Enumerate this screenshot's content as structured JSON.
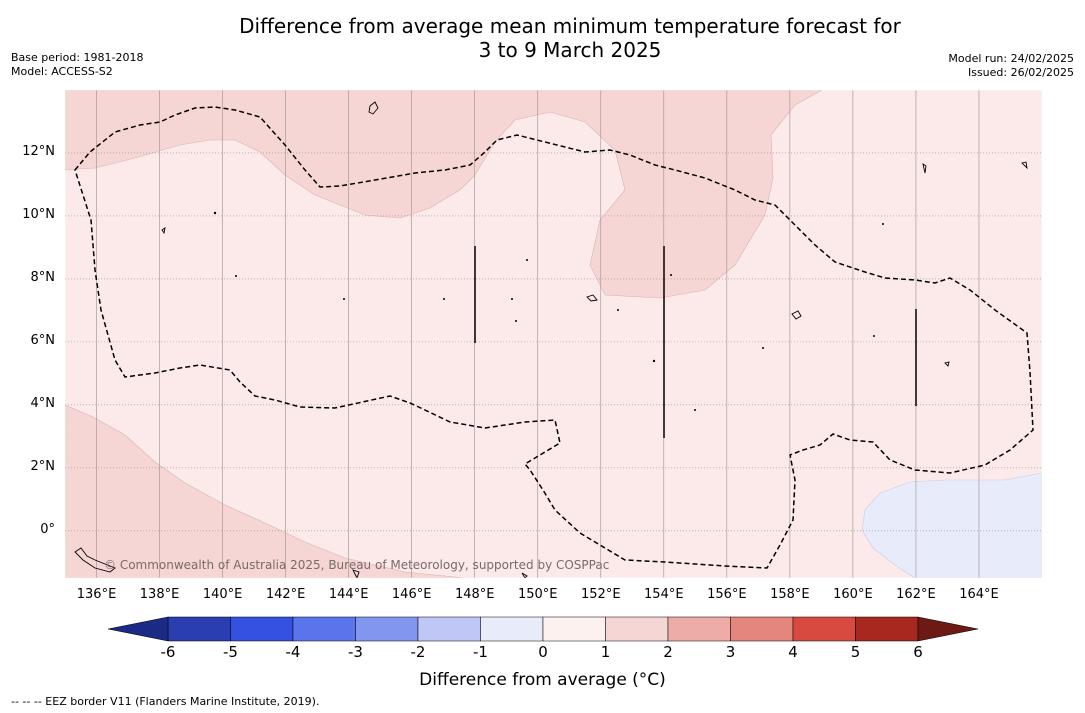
{
  "title": {
    "line1": "Difference from average mean minimum temperature forecast for",
    "line2": "3 to 9 March 2025"
  },
  "meta_left": {
    "base_period": "Base period: 1981-2018",
    "model": "Model: ACCESS-S2"
  },
  "meta_right": {
    "model_run": "Model run: 24/02/2025",
    "issued": "Issued: 26/02/2025"
  },
  "map": {
    "lon_labels": [
      "136°E",
      "138°E",
      "140°E",
      "142°E",
      "144°E",
      "146°E",
      "148°E",
      "150°E",
      "152°E",
      "154°E",
      "156°E",
      "158°E",
      "160°E",
      "162°E",
      "164°E"
    ],
    "lat_labels": [
      "12°N",
      "10°N",
      "8°N",
      "6°N",
      "4°N",
      "2°N",
      "0°"
    ],
    "lon_range": [
      135,
      166
    ],
    "lat_range": [
      -1.5,
      14
    ],
    "credit": "© Commonwealth of Australia 2025, Bureau of Meteorology, supported by COSPPac",
    "colors": {
      "anomaly_0_1": "#fbeae9",
      "anomaly_1_2": "#f5d6d5",
      "anomaly_m1_0": "#e8ebfa"
    }
  },
  "colorbar": {
    "ticks": [
      "-6",
      "-5",
      "-4",
      "-3",
      "-2",
      "-1",
      "0",
      "1",
      "2",
      "3",
      "4",
      "5",
      "6"
    ],
    "colors": [
      "#2a3eb1",
      "#3451e0",
      "#5a74ec",
      "#8295ef",
      "#bec7f5",
      "#e8ebfa",
      "#fdf1f0",
      "#f5d6d5",
      "#edaca8",
      "#e5867e",
      "#d84a40",
      "#a8281f"
    ],
    "low_color": "#1c2a86",
    "high_color": "#6e1a14",
    "title": "Difference from average (°C)"
  },
  "footnote": "--  --  -- EEZ border V11 (Flanders Marine Institute, 2019)."
}
